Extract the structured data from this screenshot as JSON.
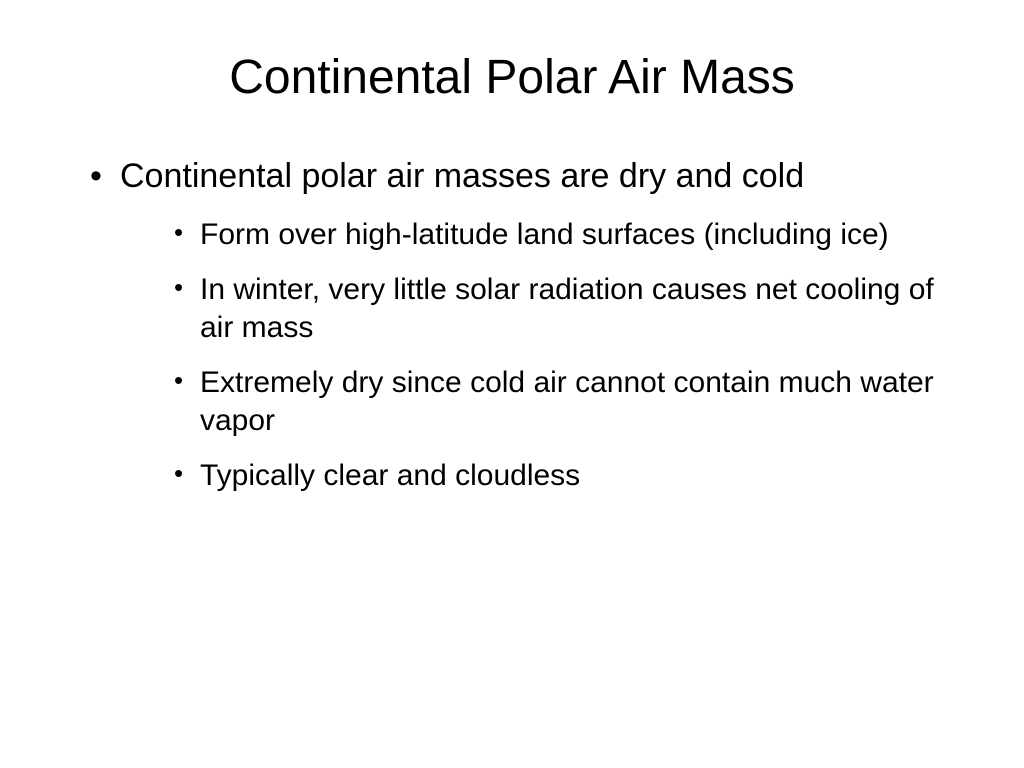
{
  "slide": {
    "title": "Continental Polar Air Mass",
    "title_fontsize": 48,
    "title_weight": 400,
    "background_color": "#ffffff",
    "text_color": "#000000",
    "font_family": "Arial",
    "bullets": {
      "level1": [
        {
          "text": "Continental polar air masses are dry and cold",
          "fontsize": 34,
          "children": [
            {
              "text": "Form over high-latitude land surfaces (including ice)",
              "fontsize": 30
            },
            {
              "text": "In winter, very little solar radiation causes net cooling of air mass",
              "fontsize": 30
            },
            {
              "text": "Extremely dry since cold air cannot contain much water vapor",
              "fontsize": 30
            },
            {
              "text": "Typically clear and cloudless",
              "fontsize": 30
            }
          ]
        }
      ]
    }
  }
}
